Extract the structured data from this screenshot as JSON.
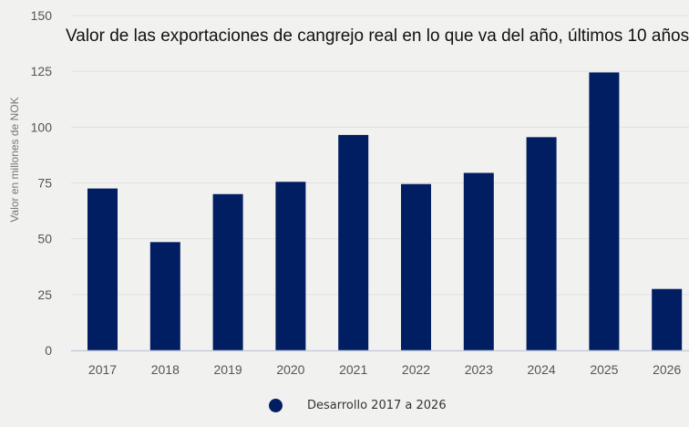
{
  "chart_data": {
    "type": "bar",
    "title": "Valor de las exportaciones de cangrejo real en lo que va del año, últimos 10 años",
    "xlabel": "",
    "ylabel": "Valor en millones de NOK",
    "categories": [
      "2017",
      "2018",
      "2019",
      "2020",
      "2021",
      "2022",
      "2023",
      "2024",
      "2025",
      "2026"
    ],
    "series": [
      {
        "name": "Desarrollo 2017 a 2026",
        "values": [
          72.5,
          48.5,
          70,
          75.5,
          96.5,
          74.5,
          79.5,
          95.5,
          124.5,
          27.5
        ],
        "color": "#021e63"
      }
    ],
    "ylim": [
      0,
      150
    ],
    "yticks": [
      0,
      25,
      50,
      75,
      100,
      125,
      150
    ],
    "grid": true,
    "legend_position": "bottom-center"
  },
  "colors": {
    "background": "#f1f2f0",
    "gridline": "#e0e1df",
    "baseline": "#c5cbdc",
    "bar": "#021e63"
  }
}
